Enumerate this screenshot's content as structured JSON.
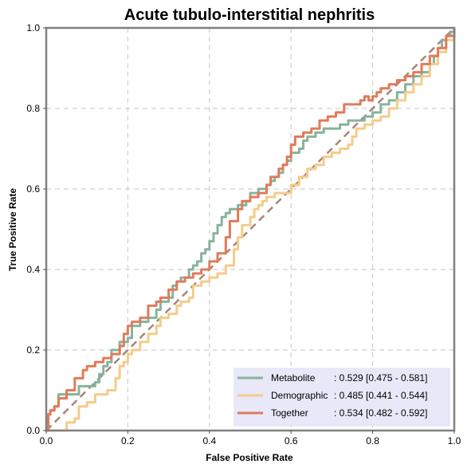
{
  "chart_data": {
    "type": "line",
    "title": "Acute tubulo-interstitial nephritis",
    "xlabel": "False Positive Rate",
    "ylabel": "True Positive Rate",
    "xlim": [
      0,
      1
    ],
    "ylim": [
      0,
      1
    ],
    "xticks": [
      "0.0",
      "0.2",
      "0.4",
      "0.6",
      "0.8",
      "1.0"
    ],
    "yticks": [
      "0.0",
      "0.2",
      "0.4",
      "0.6",
      "0.8",
      "1.0"
    ],
    "grid": true,
    "legend_position": "bottom-right",
    "diagonal": {
      "x": [
        0,
        1
      ],
      "y": [
        0,
        1
      ],
      "color": "#a8857a"
    },
    "series": [
      {
        "name": "Metabolite",
        "auc_label": ": 0.529 [0.475 - 0.581]",
        "color": "#86b49c",
        "x": [
          0,
          0.005,
          0.01,
          0.02,
          0.03,
          0.05,
          0.08,
          0.1,
          0.12,
          0.13,
          0.14,
          0.15,
          0.16,
          0.18,
          0.2,
          0.21,
          0.23,
          0.25,
          0.27,
          0.28,
          0.3,
          0.31,
          0.32,
          0.33,
          0.35,
          0.36,
          0.37,
          0.38,
          0.39,
          0.4,
          0.41,
          0.42,
          0.43,
          0.44,
          0.45,
          0.46,
          0.47,
          0.49,
          0.5,
          0.51,
          0.52,
          0.54,
          0.55,
          0.56,
          0.57,
          0.58,
          0.59,
          0.6,
          0.62,
          0.63,
          0.64,
          0.66,
          0.68,
          0.7,
          0.72,
          0.74,
          0.76,
          0.78,
          0.8,
          0.82,
          0.84,
          0.86,
          0.88,
          0.9,
          0.92,
          0.94,
          0.95,
          0.96,
          0.97,
          0.98,
          0.99,
          1.0
        ],
        "y": [
          0,
          0.04,
          0.05,
          0.06,
          0.09,
          0.09,
          0.11,
          0.11,
          0.12,
          0.14,
          0.16,
          0.17,
          0.2,
          0.22,
          0.23,
          0.26,
          0.27,
          0.28,
          0.3,
          0.32,
          0.33,
          0.36,
          0.37,
          0.38,
          0.4,
          0.41,
          0.42,
          0.44,
          0.45,
          0.47,
          0.49,
          0.51,
          0.53,
          0.54,
          0.55,
          0.55,
          0.56,
          0.57,
          0.59,
          0.59,
          0.6,
          0.61,
          0.62,
          0.63,
          0.64,
          0.66,
          0.67,
          0.69,
          0.7,
          0.72,
          0.73,
          0.74,
          0.75,
          0.75,
          0.76,
          0.77,
          0.77,
          0.78,
          0.79,
          0.81,
          0.82,
          0.84,
          0.86,
          0.88,
          0.89,
          0.91,
          0.93,
          0.95,
          0.97,
          0.98,
          0.99,
          1.0
        ]
      },
      {
        "name": "Demographic",
        "auc_label": ": 0.485 [0.441 - 0.544]",
        "color": "#f5cb8a",
        "x": [
          0,
          0.03,
          0.05,
          0.07,
          0.08,
          0.1,
          0.12,
          0.15,
          0.17,
          0.18,
          0.19,
          0.2,
          0.21,
          0.23,
          0.25,
          0.27,
          0.28,
          0.3,
          0.32,
          0.33,
          0.35,
          0.36,
          0.38,
          0.4,
          0.42,
          0.44,
          0.46,
          0.47,
          0.48,
          0.5,
          0.51,
          0.52,
          0.53,
          0.54,
          0.56,
          0.58,
          0.6,
          0.62,
          0.64,
          0.66,
          0.68,
          0.7,
          0.72,
          0.74,
          0.75,
          0.76,
          0.78,
          0.8,
          0.82,
          0.84,
          0.86,
          0.88,
          0.9,
          0.92,
          0.94,
          0.96,
          0.98,
          1.0
        ],
        "y": [
          0,
          0.0,
          0.02,
          0.03,
          0.06,
          0.07,
          0.09,
          0.1,
          0.13,
          0.16,
          0.17,
          0.19,
          0.2,
          0.22,
          0.24,
          0.26,
          0.28,
          0.29,
          0.31,
          0.32,
          0.33,
          0.36,
          0.37,
          0.38,
          0.39,
          0.41,
          0.45,
          0.48,
          0.51,
          0.53,
          0.55,
          0.56,
          0.57,
          0.58,
          0.59,
          0.59,
          0.61,
          0.63,
          0.65,
          0.66,
          0.68,
          0.69,
          0.7,
          0.71,
          0.73,
          0.75,
          0.76,
          0.77,
          0.78,
          0.8,
          0.82,
          0.84,
          0.86,
          0.88,
          0.91,
          0.94,
          0.97,
          1.0
        ]
      },
      {
        "name": "Together",
        "auc_label": ": 0.534 [0.482 - 0.592]",
        "color": "#e07b5a",
        "x": [
          0,
          0.005,
          0.01,
          0.02,
          0.03,
          0.05,
          0.07,
          0.09,
          0.1,
          0.12,
          0.14,
          0.16,
          0.18,
          0.19,
          0.2,
          0.21,
          0.23,
          0.25,
          0.27,
          0.28,
          0.3,
          0.32,
          0.34,
          0.36,
          0.38,
          0.4,
          0.42,
          0.44,
          0.45,
          0.47,
          0.48,
          0.5,
          0.52,
          0.54,
          0.55,
          0.57,
          0.58,
          0.59,
          0.6,
          0.61,
          0.63,
          0.65,
          0.67,
          0.69,
          0.71,
          0.73,
          0.75,
          0.77,
          0.78,
          0.79,
          0.8,
          0.81,
          0.82,
          0.84,
          0.86,
          0.88,
          0.9,
          0.92,
          0.94,
          0.96,
          0.98,
          1.0
        ],
        "y": [
          0,
          0.04,
          0.05,
          0.06,
          0.08,
          0.1,
          0.13,
          0.15,
          0.16,
          0.17,
          0.18,
          0.19,
          0.21,
          0.24,
          0.26,
          0.27,
          0.28,
          0.31,
          0.32,
          0.33,
          0.35,
          0.37,
          0.38,
          0.39,
          0.4,
          0.42,
          0.44,
          0.48,
          0.52,
          0.55,
          0.57,
          0.58,
          0.59,
          0.61,
          0.63,
          0.65,
          0.66,
          0.68,
          0.71,
          0.73,
          0.74,
          0.75,
          0.77,
          0.78,
          0.79,
          0.81,
          0.81,
          0.82,
          0.83,
          0.82,
          0.83,
          0.84,
          0.85,
          0.86,
          0.87,
          0.88,
          0.89,
          0.91,
          0.93,
          0.95,
          0.98,
          1.0
        ]
      }
    ]
  }
}
